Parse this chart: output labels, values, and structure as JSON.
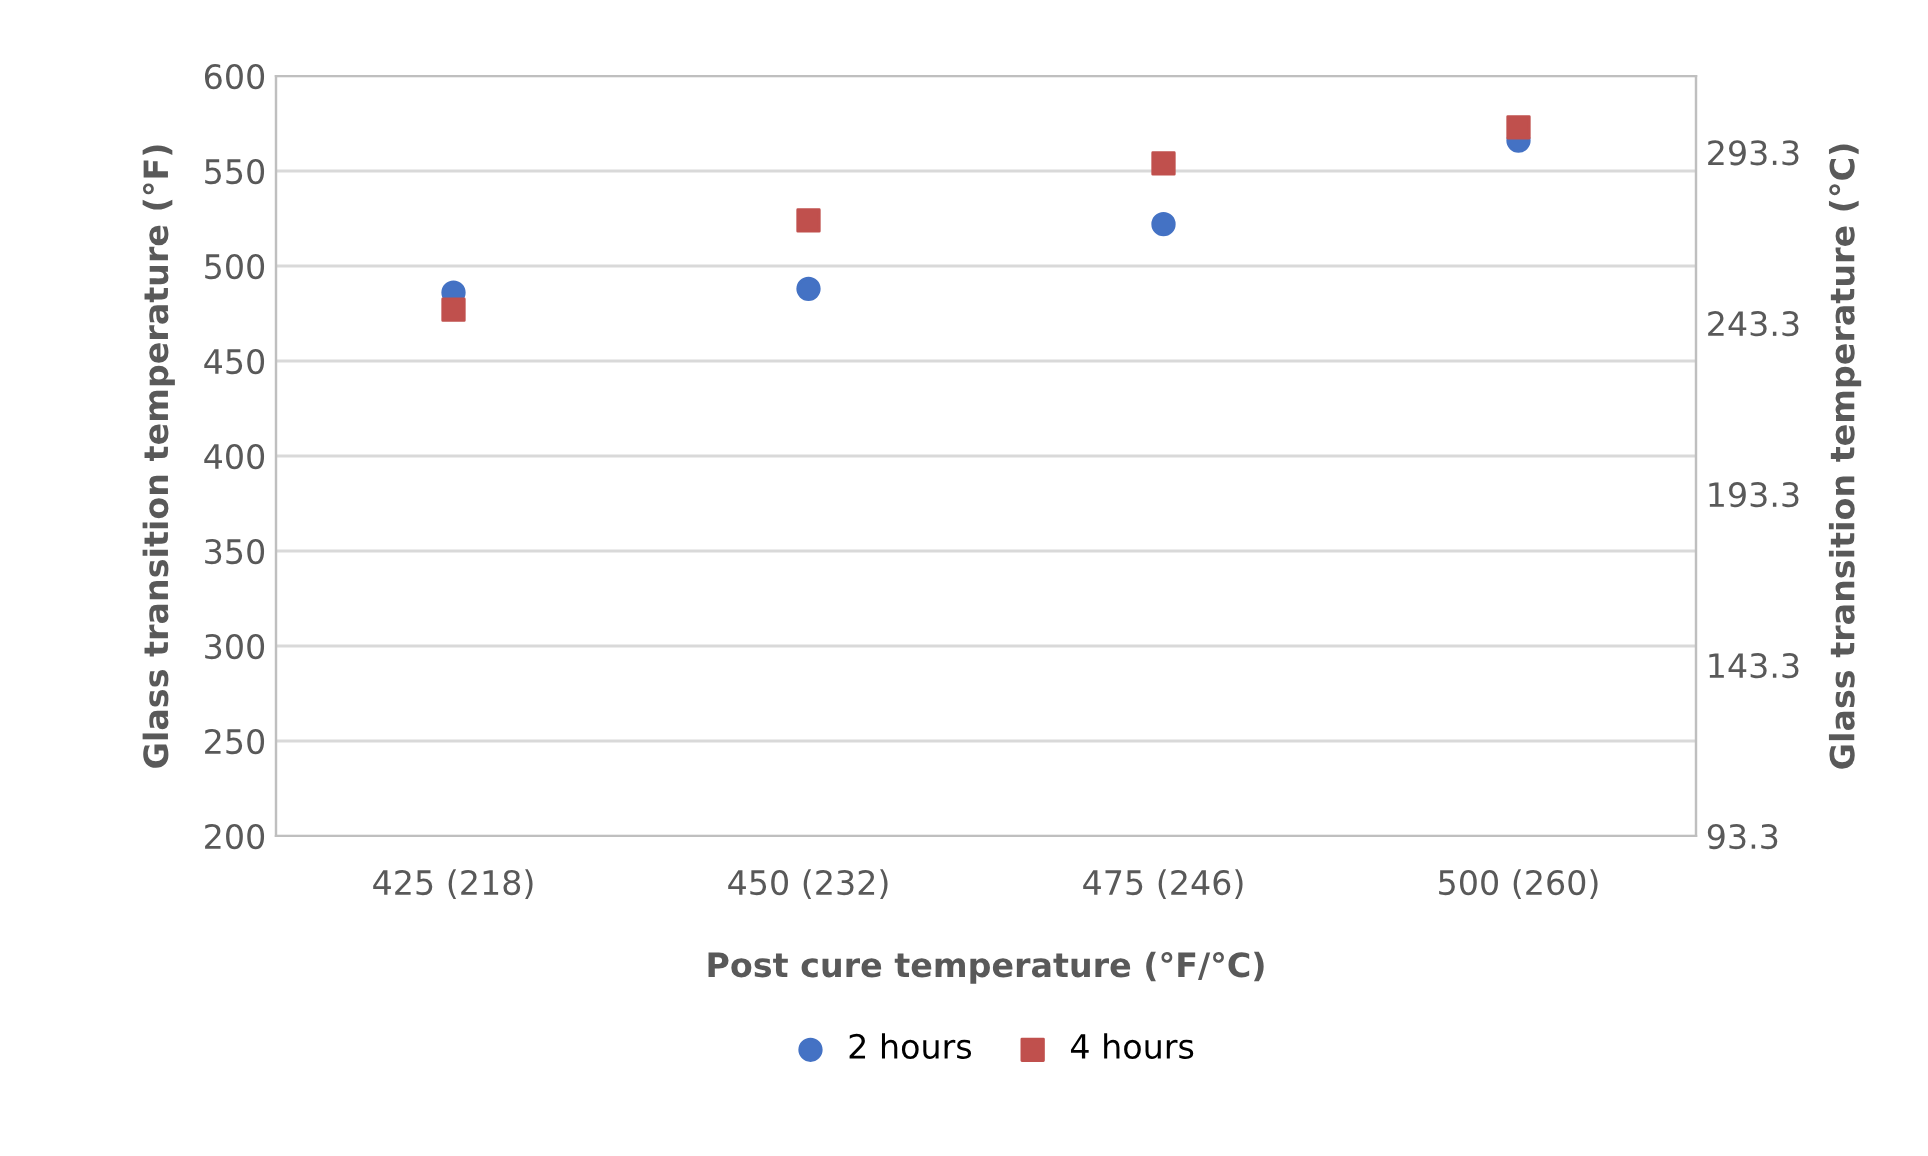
{
  "chart_data": {
    "type": "scatter",
    "xlabel": "Post cure temperature (°F/°C)",
    "ylabel": "Glass transition temperature (°F)",
    "y2label": "Glass transition temperature (°C)",
    "categories": [
      "425 (218)",
      "450 (232)",
      "475 (246)",
      "500 (260)"
    ],
    "series": [
      {
        "name": "2 hours",
        "color": "#4472c4",
        "marker": "circle",
        "values": [
          486,
          488,
          522,
          566
        ]
      },
      {
        "name": "4 hours",
        "color": "#c0504d",
        "marker": "square",
        "values": [
          477,
          524,
          554,
          573
        ]
      }
    ],
    "ylim": [
      200,
      600
    ],
    "yticks": [
      200,
      250,
      300,
      350,
      400,
      450,
      500,
      550,
      600
    ],
    "y2lim": [
      93.3,
      315.6
    ],
    "y2ticks": [
      93.3,
      143.3,
      193.3,
      243.3,
      293.3
    ],
    "grid": "y",
    "legend": "bottom"
  }
}
